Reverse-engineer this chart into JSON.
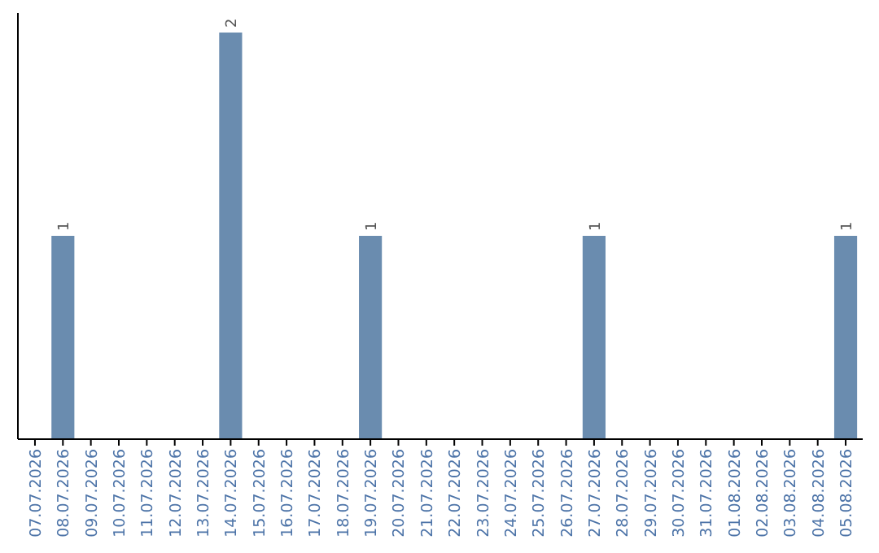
{
  "chart_data": {
    "type": "bar",
    "categories": [
      "07.07.2026",
      "08.07.2026",
      "09.07.2026",
      "10.07.2026",
      "11.07.2026",
      "12.07.2026",
      "13.07.2026",
      "14.07.2026",
      "15.07.2026",
      "16.07.2026",
      "17.07.2026",
      "18.07.2026",
      "19.07.2026",
      "20.07.2026",
      "21.07.2026",
      "22.07.2026",
      "23.07.2026",
      "24.07.2026",
      "25.07.2026",
      "26.07.2026",
      "27.07.2026",
      "28.07.2026",
      "29.07.2026",
      "30.07.2026",
      "31.07.2026",
      "01.08.2026",
      "02.08.2026",
      "03.08.2026",
      "04.08.2026",
      "05.08.2026"
    ],
    "values": [
      0,
      1,
      0,
      0,
      0,
      0,
      0,
      2,
      0,
      0,
      0,
      0,
      1,
      0,
      0,
      0,
      0,
      0,
      0,
      0,
      1,
      0,
      0,
      0,
      0,
      0,
      0,
      0,
      0,
      1
    ],
    "value_labels": [
      null,
      "1",
      null,
      null,
      null,
      null,
      null,
      "2",
      null,
      null,
      null,
      null,
      "1",
      null,
      null,
      null,
      null,
      null,
      null,
      null,
      "1",
      null,
      null,
      null,
      null,
      null,
      null,
      null,
      null,
      "1"
    ],
    "color": "#6a8caf"
  }
}
